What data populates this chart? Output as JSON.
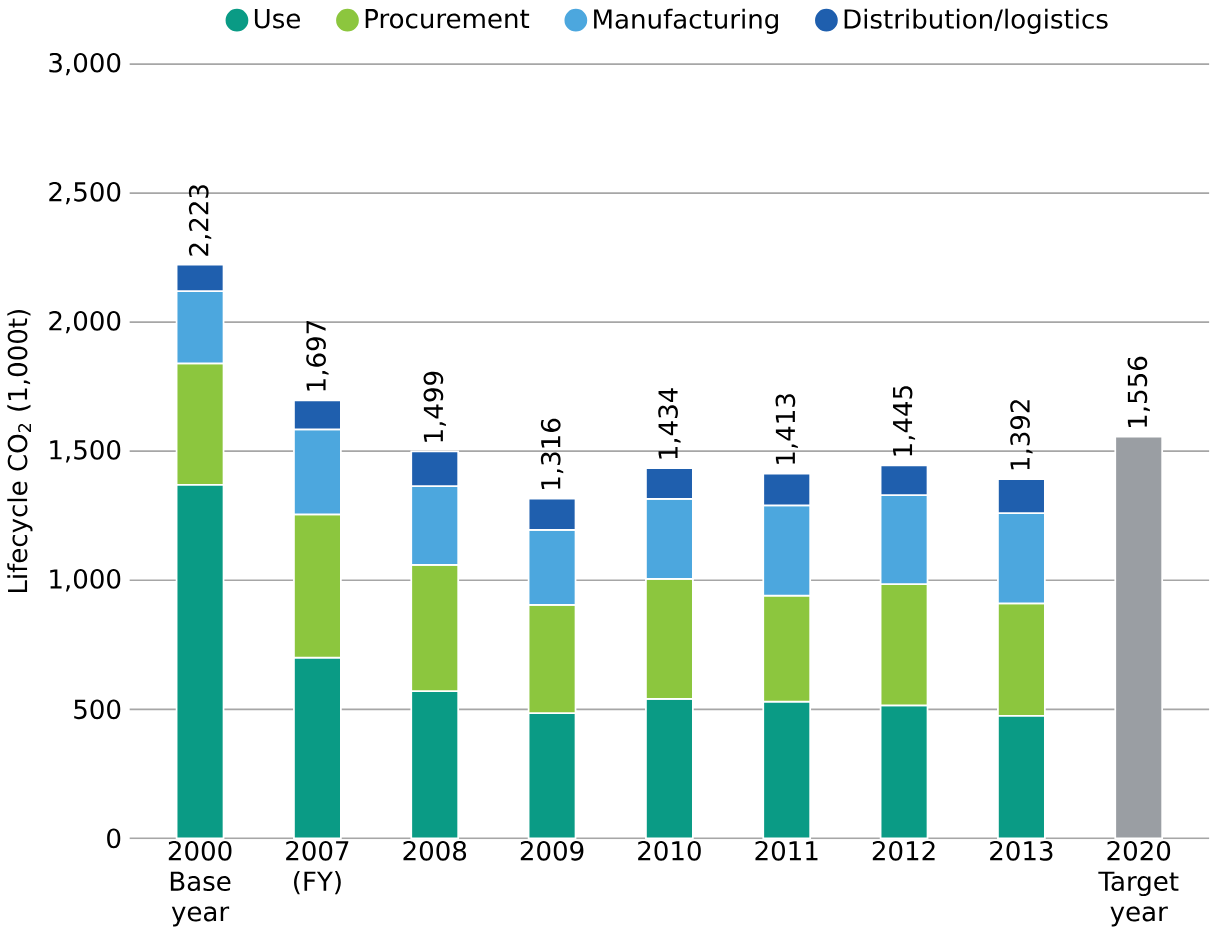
{
  "chart_data": {
    "type": "bar",
    "stacked": true,
    "ylabel": "Lifecycle CO$_{2}$ (1,000t)",
    "categories": [
      "2000 Base year",
      "2007 (FY)",
      "2008",
      "2009",
      "2010",
      "2011",
      "2012",
      "2013",
      "2020 Target year"
    ],
    "series": [
      {
        "name": "Use",
        "color": "#0a9b85",
        "values": [
          1370,
          700,
          570,
          485,
          540,
          530,
          515,
          475,
          null
        ]
      },
      {
        "name": "Procurement",
        "color": "#8cc63e",
        "values": [
          470,
          555,
          490,
          420,
          465,
          410,
          470,
          435,
          null
        ]
      },
      {
        "name": "Manufacturing",
        "color": "#4ca7de",
        "values": [
          280,
          330,
          305,
          290,
          310,
          350,
          345,
          350,
          null
        ]
      },
      {
        "name": "Distribution/logistics",
        "color": "#1f5fae",
        "values": [
          103,
          112,
          134,
          121,
          119,
          123,
          115,
          132,
          null
        ]
      },
      {
        "color": "#9a9ea3",
        "values": [
          null,
          null,
          null,
          null,
          null,
          null,
          null,
          null,
          1556
        ]
      }
    ],
    "totals": [
      "2,223",
      "1,697",
      "1,499",
      "1,316",
      "1,434",
      "1,413",
      "1,445",
      "1,392",
      "1,556"
    ],
    "ylim": [
      0,
      3000
    ],
    "yticks": [
      0,
      500,
      {
        "value": 1000,
        "label": "1,000"
      },
      {
        "value": 1500,
        "label": "1,500"
      },
      {
        "value": 2000,
        "label": "2,000"
      },
      {
        "value": 2500,
        "label": "2,500"
      },
      {
        "value": 3000,
        "label": "3,000"
      }
    ],
    "grid": "y",
    "legend": "top"
  }
}
